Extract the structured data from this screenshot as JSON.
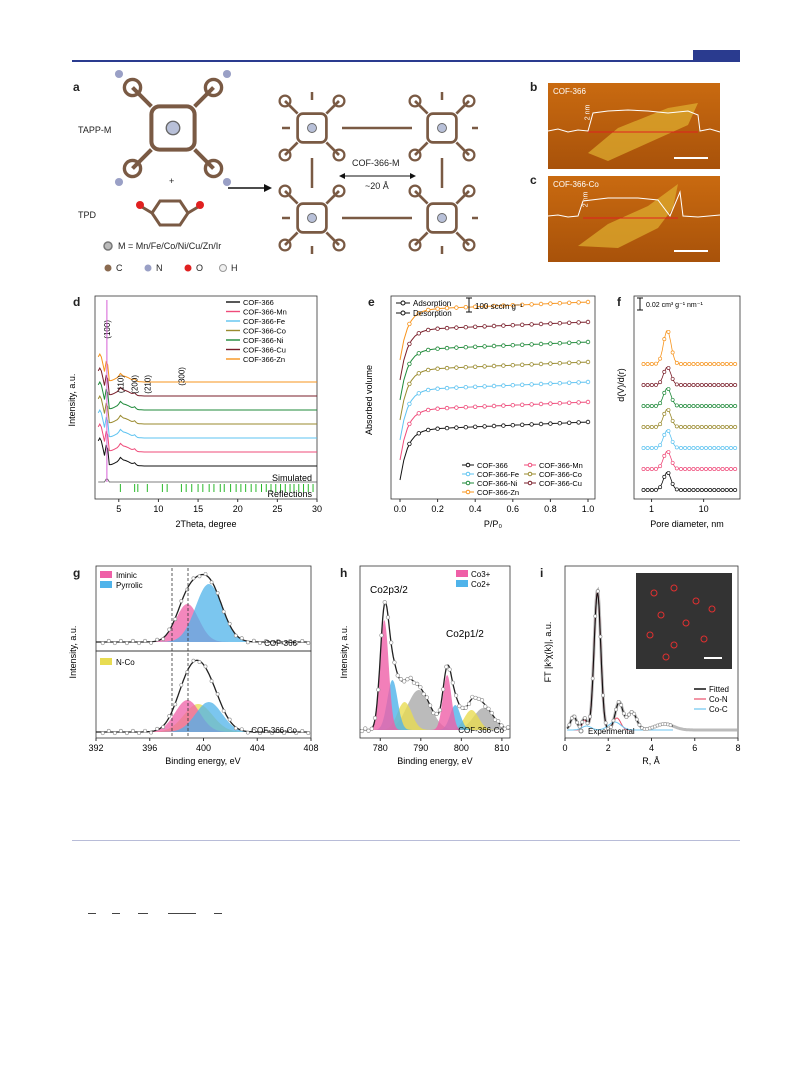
{
  "panels": {
    "a": "a",
    "b": "b",
    "c": "c",
    "d": "d",
    "e": "e",
    "f": "f",
    "g": "g",
    "h": "h",
    "i": "i"
  },
  "panel_a": {
    "tapp": "TAPP-M",
    "plus": "+",
    "tpd": "TPD",
    "metal_list": "M = Mn/Fe/Co/Ni/Cu/Zn/Ir",
    "legend": [
      "C",
      "N",
      "O",
      "H"
    ],
    "product": "COF-366-M",
    "spacing": "~20 Å"
  },
  "panel_b": {
    "label": "COF-366",
    "height": "2 nm"
  },
  "panel_c": {
    "label": "COF-366-Co",
    "height": "2 nm"
  },
  "chart_data": [
    {
      "type": "line",
      "panel": "d",
      "xlabel": "2Theta, degree",
      "ylabel": "Intensity, a.u.",
      "xlim": [
        2,
        30
      ],
      "xticks": [
        5,
        10,
        15,
        20,
        25,
        30
      ],
      "peaks": [
        {
          "label": "(100)",
          "x": 3.5
        },
        {
          "label": "(110)",
          "x": 5.2
        },
        {
          "label": "(200)",
          "x": 7.0
        },
        {
          "label": "(210)",
          "x": 8.6
        },
        {
          "label": "(300)",
          "x": 12.9
        }
      ],
      "series": [
        {
          "name": "COF-366",
          "color": "#111111"
        },
        {
          "name": "COF-366-Mn",
          "color": "#ef4b7a"
        },
        {
          "name": "COF-366-Fe",
          "color": "#5ec3f0"
        },
        {
          "name": "COF-366-Co",
          "color": "#9a8a2e"
        },
        {
          "name": "COF-366-Ni",
          "color": "#1f8a3a"
        },
        {
          "name": "COF-366-Cu",
          "color": "#7a1e2a"
        },
        {
          "name": "COF-366-Zn",
          "color": "#f7941d"
        }
      ],
      "annotations": [
        "Simulated",
        "Reflections"
      ]
    },
    {
      "type": "line",
      "panel": "e",
      "xlabel": "P/P₀",
      "ylabel": "Absorbed volume",
      "xlim": [
        0,
        1.0
      ],
      "xticks": [
        "0.0",
        "0.2",
        "0.4",
        "0.6",
        "0.8",
        "1.0"
      ],
      "scale_bar": "100 sccm g⁻¹",
      "mode_legend": [
        "Adsorption",
        "Desorption"
      ],
      "series": [
        {
          "name": "COF-366",
          "color": "#111111"
        },
        {
          "name": "COF-366-Mn",
          "color": "#ef4b7a"
        },
        {
          "name": "COF-366-Fe",
          "color": "#5ec3f0"
        },
        {
          "name": "COF-366-Co",
          "color": "#9a8a2e"
        },
        {
          "name": "COF-366-Ni",
          "color": "#1f8a3a"
        },
        {
          "name": "COF-366-Cu",
          "color": "#7a1e2a"
        },
        {
          "name": "COF-366-Zn",
          "color": "#f7941d"
        }
      ]
    },
    {
      "type": "scatter",
      "panel": "f",
      "xlabel": "Pore diameter, nm",
      "ylabel": "d(V)/d(r)",
      "xscale": "log",
      "xticks": [
        "1",
        "10"
      ],
      "scale_bar": "0.02 cm³ g⁻¹ nm⁻¹",
      "peak_x": 2.0
    },
    {
      "type": "line",
      "panel": "g",
      "xlabel": "Binding energy, eV",
      "ylabel": "Intensity, a.u.",
      "xlim": [
        392,
        408
      ],
      "xticks": [
        "392",
        "396",
        "400",
        "404",
        "408"
      ],
      "components": [
        {
          "name": "Iminic",
          "color": "#ef5fa7"
        },
        {
          "name": "Pyrrolic",
          "color": "#4fb3ea"
        },
        {
          "name": "N-Co",
          "color": "#e8dc52"
        }
      ],
      "sample_labels": [
        "COF-366",
        "COF-366-Co"
      ]
    },
    {
      "type": "line",
      "panel": "h",
      "xlabel": "Binding energy,  eV",
      "ylabel": "Intensity, a.u.",
      "xlim": [
        775,
        812
      ],
      "xticks": [
        "780",
        "790",
        "800",
        "810"
      ],
      "components": [
        {
          "name": "Co3+",
          "color": "#ef5fa7"
        },
        {
          "name": "Co2+",
          "color": "#4fb3ea"
        }
      ],
      "peak_labels": [
        "Co2p3/2",
        "Co2p1/2"
      ],
      "sample_label": "COF-366-Co"
    },
    {
      "type": "line",
      "panel": "i",
      "xlabel": "R, Å",
      "ylabel": "FT |k³χ(k)|, a.u.",
      "xlim": [
        0,
        8
      ],
      "xticks": [
        "0",
        "2",
        "4",
        "6",
        "8"
      ],
      "series": [
        {
          "name": "Fitted",
          "color": "#111111"
        },
        {
          "name": "Co-N",
          "color": "#e8506a"
        },
        {
          "name": "Co-C",
          "color": "#6ec6f0"
        },
        {
          "name": "Experimental",
          "color": "#888888"
        }
      ]
    }
  ]
}
